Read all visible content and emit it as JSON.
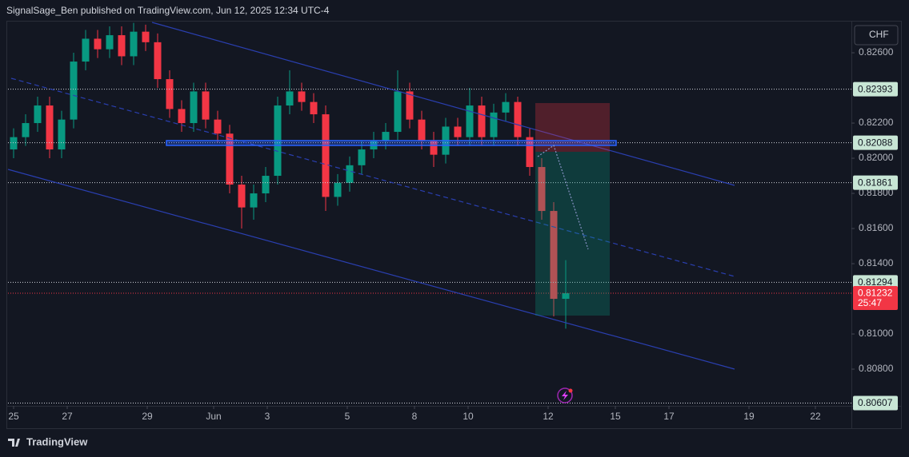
{
  "header": {
    "text": "SignalSage_Ben published on TradingView.com, Jun 12, 2025 12:34 UTC-4"
  },
  "currency": "CHF",
  "chart_data": {
    "type": "candlestick",
    "x": [
      0,
      0.3,
      0.6,
      0.9,
      1.2,
      1.5,
      1.8,
      2.1,
      2.4,
      2.7,
      3,
      3.3,
      3.6,
      3.9,
      4.2,
      4.5,
      4.8,
      5.1,
      5.4,
      5.7,
      6,
      6.3,
      6.6,
      6.9,
      7.2,
      7.5,
      7.8,
      8.1,
      8.4,
      8.7,
      9,
      9.3,
      9.6,
      9.9,
      10.2,
      10.5,
      10.8,
      11.1,
      11.4,
      11.7,
      12,
      12.3,
      12.6,
      12.9,
      13.2,
      13.5,
      13.8
    ],
    "open": [
      0.8205,
      0.8212,
      0.822,
      0.823,
      0.8205,
      0.8222,
      0.8255,
      0.8268,
      0.8262,
      0.827,
      0.8258,
      0.8272,
      0.8266,
      0.8245,
      0.8228,
      0.822,
      0.8238,
      0.8222,
      0.8214,
      0.8185,
      0.8172,
      0.818,
      0.819,
      0.823,
      0.8238,
      0.8232,
      0.8225,
      0.8178,
      0.8186,
      0.8196,
      0.8205,
      0.821,
      0.8215,
      0.8238,
      0.8222,
      0.821,
      0.8202,
      0.8218,
      0.8212,
      0.823,
      0.8212,
      0.8226,
      0.8232,
      0.8212,
      0.8195,
      0.817,
      0.812
    ],
    "high": [
      0.8217,
      0.8225,
      0.8235,
      0.8235,
      0.8227,
      0.826,
      0.8273,
      0.8273,
      0.8275,
      0.8275,
      0.8277,
      0.8276,
      0.8271,
      0.825,
      0.8233,
      0.8243,
      0.8243,
      0.8227,
      0.8219,
      0.819,
      0.8185,
      0.8195,
      0.8235,
      0.825,
      0.8243,
      0.8237,
      0.823,
      0.8191,
      0.8201,
      0.821,
      0.8215,
      0.822,
      0.825,
      0.8243,
      0.8227,
      0.8215,
      0.8223,
      0.8223,
      0.824,
      0.8235,
      0.8231,
      0.8237,
      0.8235,
      0.8217,
      0.82,
      0.8175,
      0.8142
    ],
    "low": [
      0.82,
      0.8207,
      0.8215,
      0.82,
      0.82,
      0.8217,
      0.825,
      0.8257,
      0.8257,
      0.8253,
      0.8253,
      0.8261,
      0.824,
      0.8223,
      0.8215,
      0.8215,
      0.8217,
      0.8209,
      0.818,
      0.816,
      0.8165,
      0.8175,
      0.8185,
      0.8225,
      0.8227,
      0.822,
      0.817,
      0.8173,
      0.8181,
      0.8191,
      0.82,
      0.8205,
      0.821,
      0.8217,
      0.8205,
      0.8195,
      0.8197,
      0.8207,
      0.8207,
      0.8207,
      0.8207,
      0.8221,
      0.8207,
      0.819,
      0.8165,
      0.811,
      0.8103
    ],
    "close": [
      0.8212,
      0.822,
      0.823,
      0.8205,
      0.8222,
      0.8255,
      0.8268,
      0.8262,
      0.827,
      0.8258,
      0.8272,
      0.8266,
      0.8245,
      0.8228,
      0.822,
      0.8238,
      0.8222,
      0.8214,
      0.8185,
      0.8172,
      0.818,
      0.819,
      0.823,
      0.8238,
      0.8232,
      0.8225,
      0.8178,
      0.8186,
      0.8196,
      0.8205,
      0.821,
      0.8215,
      0.8238,
      0.8222,
      0.821,
      0.8202,
      0.8218,
      0.8212,
      0.823,
      0.8212,
      0.8226,
      0.8232,
      0.8212,
      0.8195,
      0.817,
      0.812,
      0.81232
    ],
    "up_color": "#089981",
    "down_color": "#f23645",
    "xlim": [
      -0.14,
      20.94
    ],
    "xticks": [
      {
        "value": 0,
        "label": "25"
      },
      {
        "value": 1.34,
        "label": "27"
      },
      {
        "value": 3.34,
        "label": "29"
      },
      {
        "value": 5,
        "label": "Jun"
      },
      {
        "value": 6.34,
        "label": "3"
      },
      {
        "value": 8.34,
        "label": "5"
      },
      {
        "value": 10.02,
        "label": "8"
      },
      {
        "value": 11.36,
        "label": "10"
      },
      {
        "value": 13.36,
        "label": "12"
      },
      {
        "value": 15.04,
        "label": "15"
      },
      {
        "value": 16.38,
        "label": "17"
      },
      {
        "value": 18.38,
        "label": "19"
      },
      {
        "value": 20.04,
        "label": "22"
      }
    ],
    "ylim": [
      0.80591,
      0.82773
    ],
    "yticks": [
      {
        "value": 0.826,
        "label": "0.82600"
      },
      {
        "value": 0.822,
        "label": "0.82200"
      },
      {
        "value": 0.82,
        "label": "0.82000"
      },
      {
        "value": 0.818,
        "label": "0.81800"
      },
      {
        "value": 0.816,
        "label": "0.81600"
      },
      {
        "value": 0.814,
        "label": "0.81400"
      },
      {
        "value": 0.81,
        "label": "0.81000"
      },
      {
        "value": 0.808,
        "label": "0.80800"
      }
    ],
    "price_lines": [
      {
        "value": 0.82393,
        "label": "0.82393"
      },
      {
        "value": 0.82088,
        "label": "0.82088"
      },
      {
        "value": 0.81861,
        "label": "0.81861"
      },
      {
        "value": 0.81294,
        "label": "0.81294"
      },
      {
        "value": 0.80607,
        "label": "0.80607"
      }
    ],
    "current_price": {
      "value": 0.81232,
      "label": "0.81232",
      "countdown": "25:47"
    }
  },
  "footer": {
    "brand": "TradingView"
  }
}
